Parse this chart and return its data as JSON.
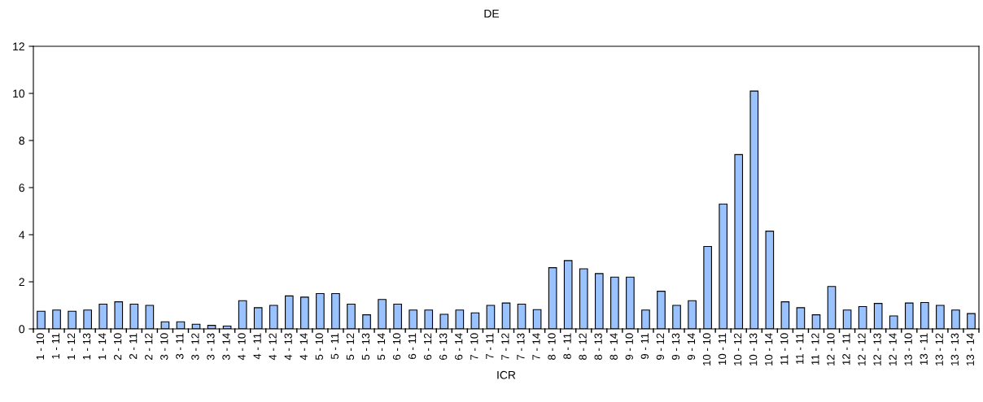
{
  "chart_data": {
    "type": "bar",
    "title": "DE",
    "xlabel": "ICR",
    "categories": [
      "1 - 10",
      "1 - 11",
      "1 - 12",
      "1 - 13",
      "1 - 14",
      "2 - 10",
      "2 - 11",
      "2 - 12",
      "3 - 10",
      "3 - 11",
      "3 - 12",
      "3 - 13",
      "3 - 14",
      "4 - 10",
      "4 - 11",
      "4 - 12",
      "4 - 13",
      "4 - 14",
      "5 - 10",
      "5 - 11",
      "5 - 12",
      "5 - 13",
      "5 - 14",
      "6 - 10",
      "6 - 11",
      "6 - 12",
      "6 - 13",
      "6 - 14",
      "7 - 10",
      "7 - 11",
      "7 - 12",
      "7 - 13",
      "7 - 14",
      "8 - 10",
      "8 - 11",
      "8 - 12",
      "8 - 13",
      "8 - 14",
      "9 - 10",
      "9 - 11",
      "9 - 12",
      "9 - 13",
      "9 - 14",
      "10 - 10",
      "10 - 11",
      "10 - 12",
      "10 - 13",
      "10 - 14",
      "11 - 10",
      "11 - 11",
      "11 - 12",
      "12 - 10",
      "12 - 11",
      "12 - 12",
      "12 - 13",
      "12 - 14",
      "13 - 10",
      "13 - 11",
      "13 - 12",
      "13 - 13",
      "13 - 14"
    ],
    "values": [
      0.75,
      0.8,
      0.75,
      0.8,
      1.05,
      1.15,
      1.05,
      1.0,
      0.3,
      0.3,
      0.2,
      0.15,
      0.12,
      1.2,
      0.9,
      1.0,
      1.4,
      1.35,
      1.5,
      1.5,
      1.05,
      0.6,
      1.25,
      1.05,
      0.8,
      0.8,
      0.62,
      0.8,
      0.68,
      1.0,
      1.1,
      1.05,
      0.82,
      2.6,
      2.9,
      2.55,
      2.35,
      2.2,
      2.2,
      0.8,
      1.6,
      1.0,
      1.2,
      3.5,
      5.3,
      7.4,
      10.1,
      4.15,
      1.15,
      0.9,
      0.6,
      1.8,
      0.8,
      0.95,
      1.08,
      0.55,
      1.1,
      1.12,
      1.0,
      0.8,
      0.65
    ],
    "color": "#99c2ff",
    "ylim": [
      0,
      12
    ],
    "yticks": [
      0,
      2,
      4,
      6,
      8,
      10,
      12
    ],
    "grid": false,
    "legend": false
  }
}
